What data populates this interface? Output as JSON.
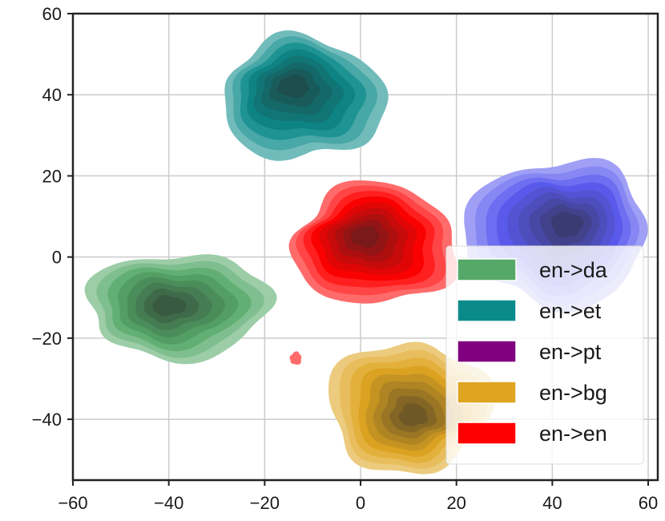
{
  "chart_data": {
    "type": "contour-density",
    "xlim": [
      -60,
      62
    ],
    "ylim": [
      -55,
      60
    ],
    "xticks": [
      -60,
      -40,
      -20,
      0,
      20,
      40,
      60
    ],
    "yticks": [
      -40,
      -20,
      0,
      20,
      40,
      60
    ],
    "grid": true,
    "legend_position": "lower-right",
    "series": [
      {
        "name": "en->da",
        "color": "#55a868",
        "clusters": [
          {
            "cx": -38,
            "cy": -12,
            "rx": 19,
            "ry": 13,
            "levels": 8,
            "dark_cx": -40,
            "dark_cy": -12
          }
        ]
      },
      {
        "name": "en->et",
        "color": "#0b8a8a",
        "clusters": [
          {
            "cx": -12,
            "cy": 39,
            "rx": 17,
            "ry": 15,
            "levels": 8,
            "dark_cx": -14,
            "dark_cy": 42
          }
        ]
      },
      {
        "name": "en->pt",
        "color": "#800080",
        "clusters": []
      },
      {
        "name": "en->bg",
        "color": "#dfa521",
        "clusters": [
          {
            "cx": 10,
            "cy": -37,
            "rx": 17,
            "ry": 16,
            "levels": 9,
            "dark_cx": 11,
            "dark_cy": -39
          }
        ]
      },
      {
        "name": "en->en",
        "color": "#ff0000",
        "clusters": [
          {
            "cx": 3,
            "cy": 3,
            "rx": 17,
            "ry": 15,
            "levels": 9,
            "dark_cx": 1,
            "dark_cy": 5
          },
          {
            "cx": -13.5,
            "cy": -25,
            "rx": 1.2,
            "ry": 1.6,
            "levels": 1,
            "dark_cx": -13.5,
            "dark_cy": -25
          }
        ]
      },
      {
        "name": "",
        "color": "#5a5af0",
        "clusters": [
          {
            "cx": 41,
            "cy": 6,
            "rx": 19,
            "ry": 18,
            "levels": 9,
            "dark_cx": 43,
            "dark_cy": 8
          }
        ]
      }
    ]
  }
}
